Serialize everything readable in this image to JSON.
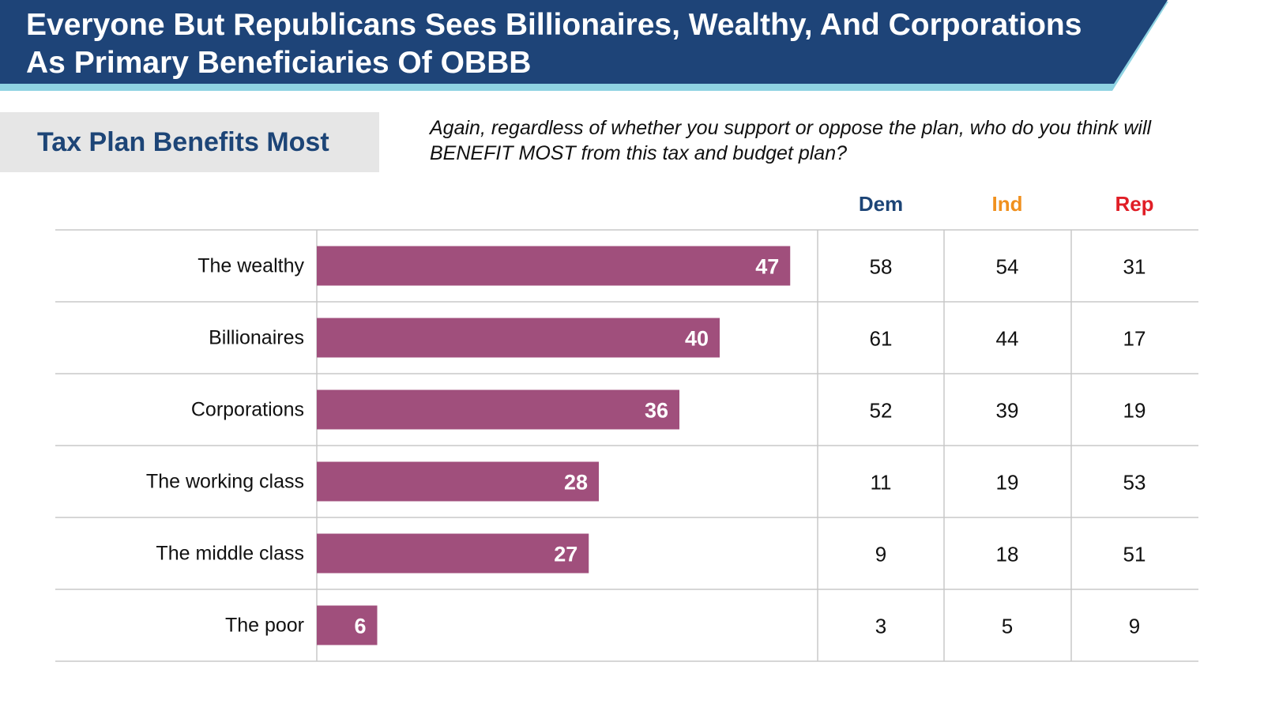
{
  "header": {
    "title_lines": [
      "Everyone But Republicans Sees Billionaires, Wealthy, And Corporations",
      "As Primary Beneficiaries Of OBBB"
    ]
  },
  "section": {
    "title": "Tax Plan Benefits Most"
  },
  "question": {
    "lines": [
      "Again, regardless of whether you support or oppose the plan, who do you think will",
      "BENEFIT MOST from this tax and budget plan?"
    ]
  },
  "colors": {
    "banner": "#1e4478",
    "banner_accent": "#8fd3e2",
    "bar": "#a04f7c",
    "dem": "#1d4577",
    "ind": "#f0901e",
    "rep": "#e01e26",
    "grid": "#c8c8c8",
    "section_title": "#1d4577"
  },
  "chart_data": {
    "type": "table",
    "title": "Tax Plan Benefits Most",
    "categories": [
      "The wealthy",
      "Billionaires",
      "Corporations",
      "The working class",
      "The middle class",
      "The poor"
    ],
    "values": [
      47,
      40,
      36,
      28,
      27,
      6
    ],
    "columns": [
      "Dem",
      "Ind",
      "Rep"
    ],
    "series": [
      {
        "name": "Dem",
        "values": [
          58,
          61,
          52,
          11,
          9,
          3
        ]
      },
      {
        "name": "Ind",
        "values": [
          54,
          44,
          39,
          19,
          18,
          5
        ]
      },
      {
        "name": "Rep",
        "values": [
          31,
          17,
          19,
          53,
          51,
          9
        ]
      }
    ],
    "bar_scale_max": 100
  }
}
